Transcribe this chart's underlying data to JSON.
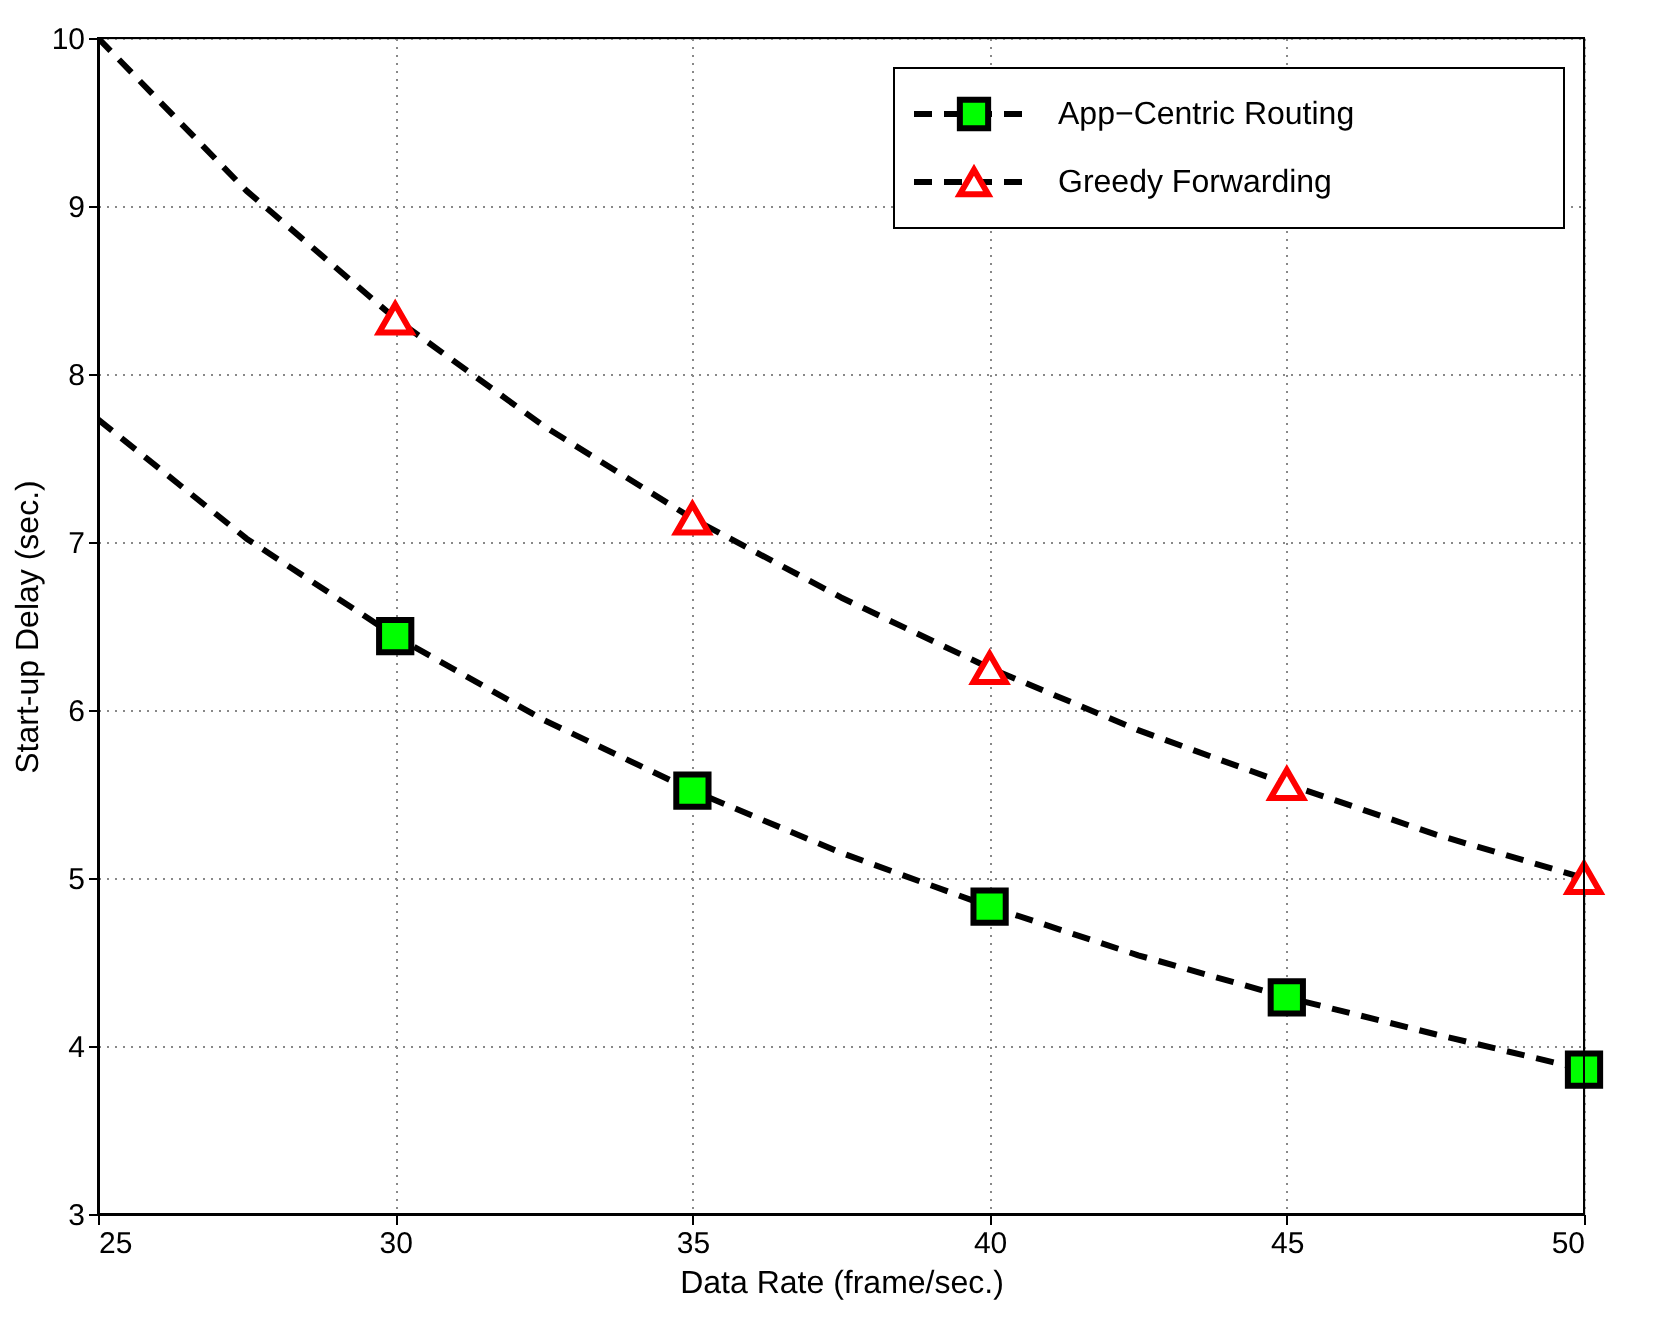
{
  "chart_data": {
    "type": "line",
    "xlabel": "Data Rate (frame/sec.)",
    "ylabel": "Start-up Delay (sec.)",
    "xlim": [
      25,
      50
    ],
    "xticks": [
      25,
      30,
      35,
      40,
      45,
      50
    ],
    "ylim": [
      3,
      10
    ],
    "yticks": [
      3,
      4,
      5,
      6,
      7,
      8,
      9,
      10
    ],
    "grid": true,
    "legend": "top right",
    "series": [
      {
        "color": "#000000",
        "line_style": "dashed",
        "marker": "none",
        "x": [
          25,
          27.5,
          30,
          32.5,
          35,
          37.5,
          40,
          42.5,
          45,
          47.5,
          50
        ],
        "values": [
          7.73,
          7.02,
          6.44,
          5.94,
          5.52,
          5.15,
          4.83,
          4.54,
          4.29,
          4.07,
          3.86
        ]
      },
      {
        "type": "scatter",
        "name": "App−Centric Routing",
        "color": "#00ff00",
        "marker": "square",
        "x": [
          30,
          35,
          40,
          45,
          50
        ],
        "values": [
          6.44,
          5.52,
          4.83,
          4.29,
          3.86
        ]
      },
      {
        "color": "#000000",
        "line_style": "dashed",
        "marker": "none",
        "x": [
          25,
          27.5,
          30,
          32.5,
          35,
          37.5,
          40,
          42.5,
          45,
          47.5,
          50
        ],
        "values": [
          10.0,
          9.09,
          8.33,
          7.69,
          7.14,
          6.67,
          6.25,
          5.88,
          5.56,
          5.26,
          5.0
        ]
      },
      {
        "type": "scatter",
        "name": "Greedy Forwarding",
        "color": "#ff0000",
        "marker": "triangle",
        "x": [
          30,
          35,
          40,
          45,
          50
        ],
        "values": [
          8.33,
          7.14,
          6.25,
          5.56,
          5.0
        ]
      }
    ]
  }
}
